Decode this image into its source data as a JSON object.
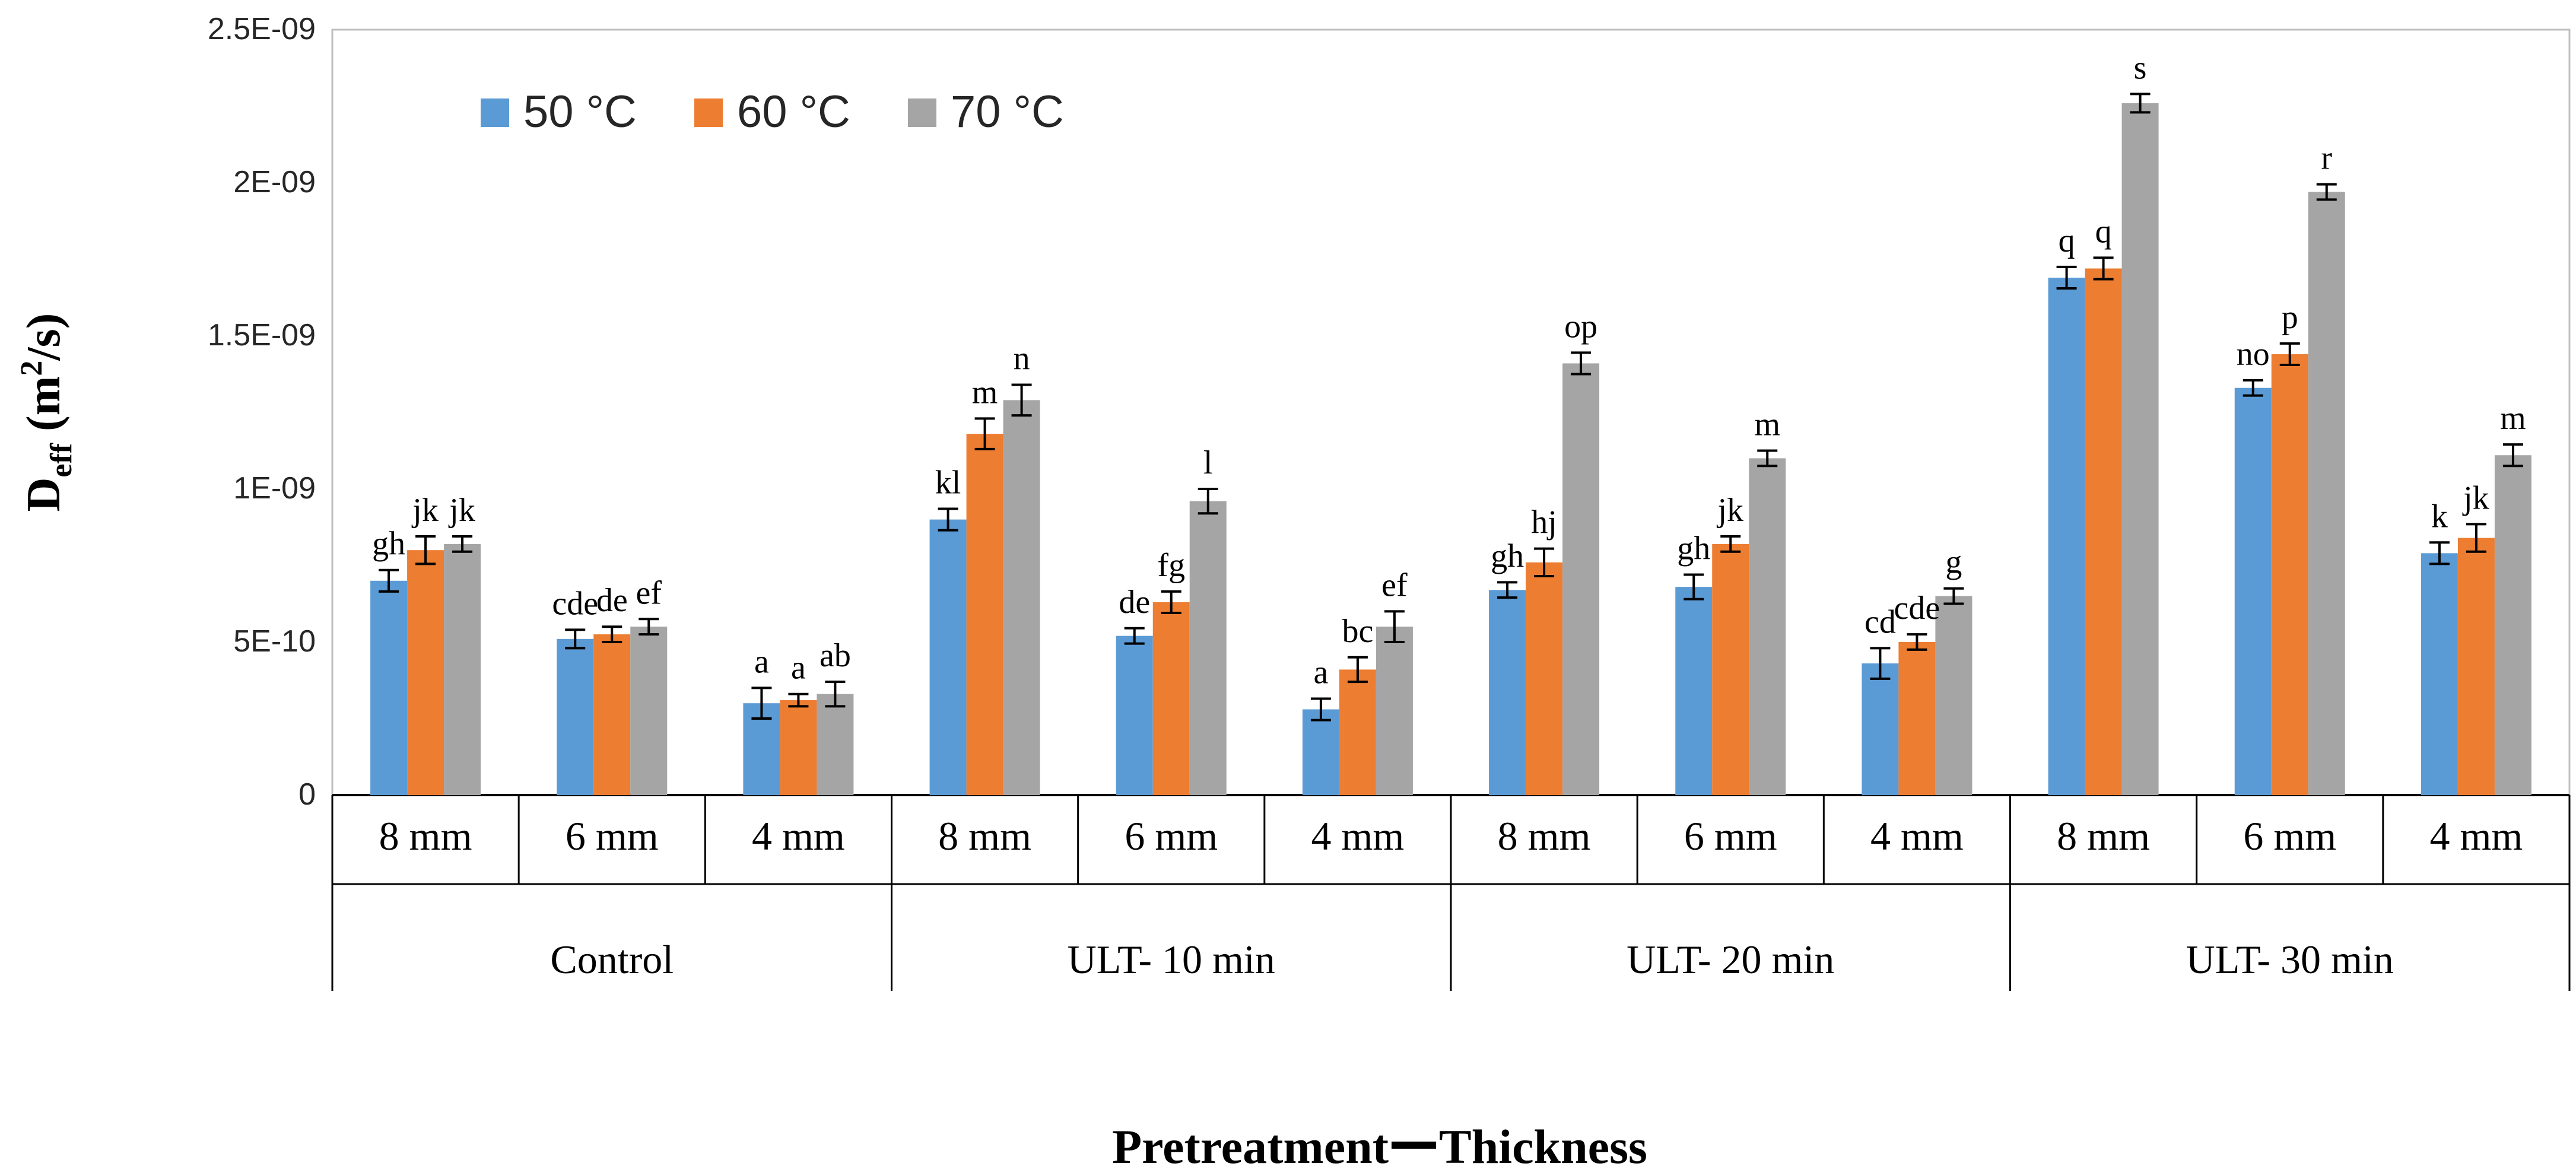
{
  "chart_data": {
    "type": "bar",
    "title": "",
    "xlabel_parts": [
      "Pretreatment",
      "Thickness"
    ],
    "ylabel_main": "D",
    "ylabel_sub": "eff",
    "ylabel_unit_pre": " (m",
    "ylabel_unit_sup": "2",
    "ylabel_unit_post": "/s)",
    "ylim": [
      0,
      2.5e-09
    ],
    "yticks": [
      {
        "value": 0,
        "label": "0"
      },
      {
        "value": 5e-10,
        "label": "5E-10"
      },
      {
        "value": 1e-09,
        "label": "1E-09"
      },
      {
        "value": 1.5e-09,
        "label": "1.5E-09"
      },
      {
        "value": 2e-09,
        "label": "2E-09"
      },
      {
        "value": 2.5e-09,
        "label": "2.5E-09"
      }
    ],
    "groups": [
      "Control",
      "ULT- 10 min",
      "ULT- 20 min",
      "ULT- 30 min"
    ],
    "categories": [
      "8 mm",
      "6 mm",
      "4 mm",
      "8 mm",
      "6 mm",
      "4 mm",
      "8 mm",
      "6 mm",
      "4 mm",
      "8 mm",
      "6 mm",
      "4 mm"
    ],
    "legend_position": "top-left",
    "series": [
      {
        "name": "50 °C",
        "color": "#5B9BD5",
        "values": [
          7e-10,
          5.1e-10,
          3e-10,
          9e-10,
          5.2e-10,
          2.8e-10,
          6.7e-10,
          6.8e-10,
          4.3e-10,
          1.69e-09,
          1.33e-09,
          7.9e-10
        ],
        "errors": [
          3.5e-11,
          3e-11,
          5e-11,
          3.5e-11,
          2.5e-11,
          3.5e-11,
          2.5e-11,
          4e-11,
          5e-11,
          3.5e-11,
          2.5e-11,
          3.5e-11
        ],
        "letters": [
          "gh",
          "cde",
          "a",
          "kl",
          "de",
          "a",
          "gh",
          "gh",
          "cd",
          "q",
          "no",
          "k"
        ]
      },
      {
        "name": "60 °C",
        "color": "#ED7D31",
        "values": [
          8e-10,
          5.25e-10,
          3.1e-10,
          1.18e-09,
          6.3e-10,
          4.1e-10,
          7.6e-10,
          8.2e-10,
          5e-10,
          1.72e-09,
          1.44e-09,
          8.4e-10
        ],
        "errors": [
          4.5e-11,
          2.5e-11,
          2e-11,
          5e-11,
          3.5e-11,
          4e-11,
          4.5e-11,
          2.5e-11,
          2.5e-11,
          3.5e-11,
          3.5e-11,
          4.5e-11
        ],
        "letters": [
          "jk",
          "de",
          "a",
          "m",
          "fg",
          "bc",
          "hj",
          "jk",
          "cde",
          "q",
          "p",
          "jk"
        ]
      },
      {
        "name": "70 °C",
        "color": "#A5A5A5",
        "values": [
          8.2e-10,
          5.5e-10,
          3.3e-10,
          1.29e-09,
          9.6e-10,
          5.5e-10,
          1.41e-09,
          1.1e-09,
          6.5e-10,
          2.26e-09,
          1.97e-09,
          1.11e-09
        ],
        "errors": [
          2.5e-11,
          2.5e-11,
          4e-11,
          5e-11,
          4e-11,
          5e-11,
          3.5e-11,
          2.5e-11,
          2.5e-11,
          3e-11,
          2.5e-11,
          3.5e-11
        ],
        "letters": [
          "jk",
          "ef",
          "ab",
          "n",
          "l",
          "ef",
          "op",
          "m",
          "g",
          "s",
          "r",
          "m"
        ]
      }
    ]
  }
}
